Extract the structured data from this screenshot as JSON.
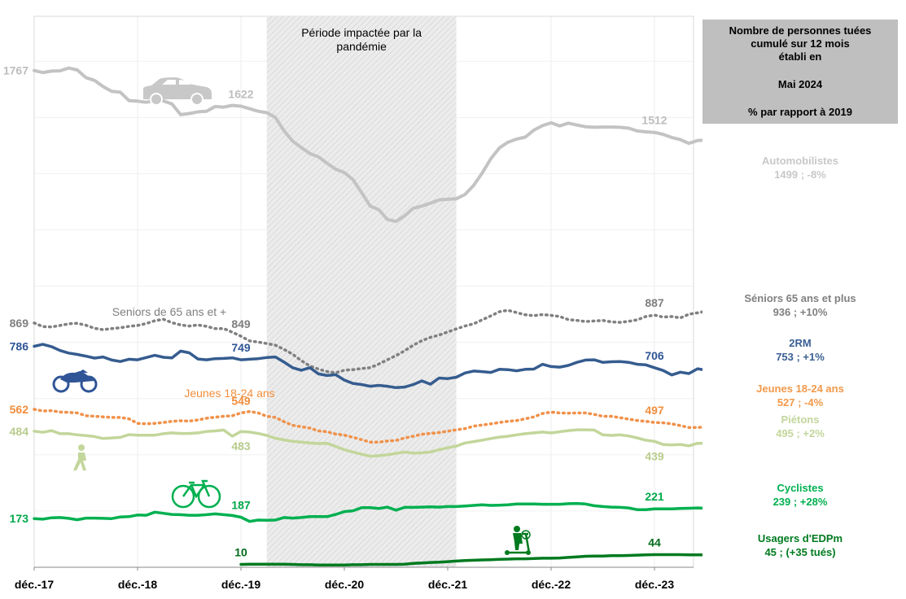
{
  "header_box": {
    "line1": "Nombre de personnes tuées",
    "line2": "cumulé sur 12 mois",
    "line3": "établi en",
    "line4": "Mai 2024",
    "line5": "% par rapport à 2019"
  },
  "legend": [
    {
      "key": "auto",
      "name": "Automobilistes",
      "value": "1499 ; -8%",
      "color": "#c8c8c8"
    },
    {
      "key": "seniors",
      "name": "Séniors 65 ans et plus",
      "value": "936 ; +10%",
      "color": "#808080"
    },
    {
      "key": "2rm",
      "name": "2RM",
      "value": "753 ; +1%",
      "color": "#3a5f94"
    },
    {
      "key": "jeunes",
      "name": "Jeunes 18-24 ans",
      "value": "527 ; -4%",
      "color": "#f2994a"
    },
    {
      "key": "pietons",
      "name": "Piétons",
      "value": "495 ; +2%",
      "color": "#c3d69b"
    },
    {
      "key": "cyclistes",
      "name": "Cyclistes",
      "value": "239 ; +28%",
      "color": "#00b050"
    },
    {
      "key": "edpm",
      "name": "Usagers d'EDPm",
      "value": "45 ; (+35 tués)",
      "color": "#007a1f"
    }
  ],
  "chart_data": {
    "type": "line",
    "title": "",
    "xlabel": "",
    "ylabel": "",
    "x_ticks": [
      "déc.-17",
      "déc.-18",
      "déc.-19",
      "déc.-20",
      "déc.-21",
      "déc.-22",
      "déc.-23"
    ],
    "x_range": [
      "2017-12",
      "2024-05"
    ],
    "ylim": [
      0,
      1960
    ],
    "grid": true,
    "shaded_period": {
      "from": "2020-03",
      "to": "2022-01",
      "label_line1": "Période impactée par la",
      "label_line2": "pandémie"
    },
    "annotations": [
      {
        "series": "auto",
        "text": "1767",
        "anchor": "start"
      },
      {
        "series": "auto",
        "text": "1622",
        "anchor": "dec19"
      },
      {
        "series": "auto",
        "text": "1512",
        "anchor": "dec23"
      },
      {
        "series": "seniors",
        "text": "869",
        "anchor": "start"
      },
      {
        "series": "seniors",
        "text": "849",
        "anchor": "dec19"
      },
      {
        "series": "seniors",
        "text": "887",
        "anchor": "dec23"
      },
      {
        "series": "2rm",
        "text": "786",
        "anchor": "start"
      },
      {
        "series": "2rm",
        "text": "749",
        "anchor": "dec19"
      },
      {
        "series": "2rm",
        "text": "706",
        "anchor": "dec23"
      },
      {
        "series": "jeunes",
        "text": "562",
        "anchor": "start"
      },
      {
        "series": "jeunes",
        "text": "549",
        "anchor": "dec19"
      },
      {
        "series": "jeunes",
        "text": "497",
        "anchor": "dec23"
      },
      {
        "series": "pietons",
        "text": "484",
        "anchor": "start"
      },
      {
        "series": "pietons",
        "text": "483",
        "anchor": "dec19"
      },
      {
        "series": "pietons",
        "text": "439",
        "anchor": "dec23"
      },
      {
        "series": "cyclistes",
        "text": "173",
        "anchor": "start"
      },
      {
        "series": "cyclistes",
        "text": "187",
        "anchor": "dec19"
      },
      {
        "series": "cyclistes",
        "text": "221",
        "anchor": "dec23"
      },
      {
        "series": "edpm",
        "text": "10",
        "anchor": "dec19"
      },
      {
        "series": "edpm",
        "text": "44",
        "anchor": "dec23"
      }
    ],
    "inline_labels": {
      "seniors": "Seniors de 65 ans et +",
      "jeunes": "Jeunes 18-24 ans"
    },
    "series": [
      {
        "key": "auto",
        "name": "Automobilistes",
        "color": "#c3c3c3",
        "dashed": false,
        "start": "2017-12",
        "values": [
          1767,
          1760,
          1765,
          1766,
          1776,
          1769,
          1742,
          1732,
          1710,
          1693,
          1690,
          1660,
          1658,
          1654,
          1660,
          1659,
          1648,
          1610,
          1614,
          1620,
          1622,
          1639,
          1637,
          1643,
          1640,
          1631,
          1622,
          1617,
          1600,
          1553,
          1516,
          1493,
          1472,
          1460,
          1437,
          1416,
          1404,
          1379,
          1333,
          1285,
          1272,
          1237,
          1230,
          1250,
          1277,
          1285,
          1295,
          1307,
          1309,
          1311,
          1326,
          1358,
          1402,
          1453,
          1492,
          1512,
          1523,
          1530,
          1555,
          1571,
          1581,
          1570,
          1580,
          1573,
          1567,
          1565,
          1566,
          1566,
          1565,
          1562,
          1552,
          1549,
          1547,
          1540,
          1529,
          1521,
          1508,
          1518,
          1520,
          1537,
          1529,
          1516,
          1519,
          1535,
          1526,
          1512,
          1499
        ]
      },
      {
        "key": "seniors",
        "name": "Séniors 65 ans et plus",
        "color": "#808080",
        "dashed": true,
        "start": "2017-12",
        "values": [
          869,
          856,
          855,
          860,
          866,
          868,
          861,
          850,
          845,
          849,
          852,
          857,
          860,
          867,
          877,
          882,
          870,
          862,
          858,
          862,
          857,
          849,
          849,
          836,
          822,
          805,
          801,
          796,
          790,
          775,
          758,
          735,
          716,
          705,
          696,
          692,
          701,
          703,
          707,
          710,
          723,
          738,
          753,
          770,
          790,
          806,
          818,
          826,
          837,
          848,
          858,
          866,
          880,
          894,
          909,
          914,
          906,
          898,
          895,
          899,
          896,
          892,
          881,
          878,
          874,
          876,
          878,
          873,
          871,
          875,
          880,
          892,
          897,
          890,
          892,
          887,
          900,
          905,
          911,
          915,
          920,
          924,
          930,
          932,
          936
        ]
      },
      {
        "key": "2rm",
        "name": "2RM",
        "color": "#355c8f",
        "dashed": false,
        "start": "2017-12",
        "values": [
          786,
          793,
          785,
          771,
          762,
          757,
          751,
          744,
          748,
          737,
          732,
          740,
          738,
          746,
          754,
          747,
          745,
          769,
          763,
          741,
          738,
          742,
          743,
          745,
          738,
          740,
          742,
          746,
          748,
          730,
          710,
          701,
          710,
          688,
          682,
          685,
          666,
          654,
          650,
          644,
          647,
          644,
          639,
          641,
          650,
          663,
          651,
          673,
          671,
          676,
          691,
          698,
          696,
          693,
          704,
          703,
          699,
          704,
          705,
          722,
          714,
          712,
          718,
          729,
          737,
          738,
          729,
          731,
          732,
          729,
          722,
          720,
          710,
          700,
          684,
          694,
          689,
          706,
          701,
          703,
          707,
          709,
          714,
          719,
          728,
          742,
          753
        ]
      },
      {
        "key": "jeunes",
        "name": "Jeunes 18-24 ans",
        "color": "#f0914a",
        "dashed": true,
        "start": "2017-12",
        "values": [
          562,
          556,
          557,
          552,
          551,
          549,
          539,
          537,
          535,
          533,
          533,
          528,
          512,
          510,
          512,
          515,
          519,
          521,
          520,
          524,
          530,
          534,
          537,
          539,
          549,
          554,
          549,
          537,
          533,
          518,
          505,
          500,
          495,
          485,
          482,
          474,
          470,
          462,
          454,
          445,
          445,
          449,
          451,
          460,
          466,
          473,
          476,
          479,
          484,
          489,
          493,
          502,
          506,
          510,
          515,
          519,
          522,
          528,
          535,
          547,
          552,
          549,
          548,
          549,
          549,
          544,
          537,
          537,
          532,
          527,
          522,
          519,
          515,
          514,
          510,
          504,
          497,
          497,
          500,
          498,
          500,
          506,
          513,
          520,
          524,
          529,
          527
        ]
      },
      {
        "key": "pietons",
        "name": "Piétons",
        "color": "#c3d69b",
        "dashed": false,
        "start": "2017-12",
        "values": [
          484,
          480,
          486,
          475,
          475,
          471,
          468,
          465,
          458,
          460,
          462,
          472,
          470,
          470,
          470,
          475,
          478,
          476,
          476,
          478,
          483,
          485,
          488,
          466,
          483,
          481,
          476,
          469,
          459,
          453,
          448,
          445,
          442,
          440,
          441,
          430,
          418,
          410,
          402,
          395,
          397,
          400,
          405,
          410,
          406,
          407,
          410,
          418,
          425,
          431,
          442,
          447,
          452,
          458,
          463,
          466,
          471,
          475,
          478,
          481,
          478,
          482,
          486,
          489,
          489,
          488,
          471,
          469,
          471,
          467,
          460,
          452,
          448,
          437,
          435,
          437,
          432,
          441,
          441,
          451,
          462,
          476,
          479,
          481,
          487,
          493,
          495
        ]
      },
      {
        "key": "cyclistes",
        "name": "Cyclistes",
        "color": "#00b050",
        "dashed": false,
        "start": "2017-12",
        "values": [
          173,
          171,
          176,
          177,
          174,
          169,
          175,
          175,
          174,
          173,
          179,
          180,
          186,
          185,
          196,
          192,
          188,
          187,
          185,
          185,
          187,
          190,
          187,
          184,
          178,
          163,
          168,
          167,
          168,
          177,
          175,
          177,
          180,
          180,
          180,
          188,
          198,
          201,
          212,
          212,
          209,
          214,
          203,
          213,
          213,
          214,
          215,
          214,
          216,
          216,
          218,
          220,
          222,
          220,
          221,
          222,
          225,
          225,
          225,
          224,
          224,
          224,
          226,
          227,
          225,
          219,
          216,
          214,
          213,
          211,
          205,
          205,
          208,
          208,
          208,
          209,
          210,
          211,
          210,
          213,
          215,
          219,
          221,
          224,
          230,
          239
        ]
      },
      {
        "key": "edpm",
        "name": "Usagers d'EDPm",
        "color": "#007a1f",
        "dashed": false,
        "start": "2019-12",
        "values": [
          10,
          11,
          11,
          11,
          11,
          11,
          10,
          9,
          9,
          8,
          8,
          8,
          8,
          9,
          9,
          10,
          10,
          10,
          10,
          11,
          14,
          15,
          17,
          18,
          20,
          22,
          24,
          25,
          26,
          27,
          28,
          29,
          30,
          30,
          31,
          32,
          32,
          33,
          35,
          37,
          39,
          40,
          40,
          41,
          41,
          42,
          43,
          44,
          45,
          45,
          45,
          45,
          44,
          44,
          44,
          43,
          43,
          43,
          44,
          45
        ]
      }
    ]
  }
}
